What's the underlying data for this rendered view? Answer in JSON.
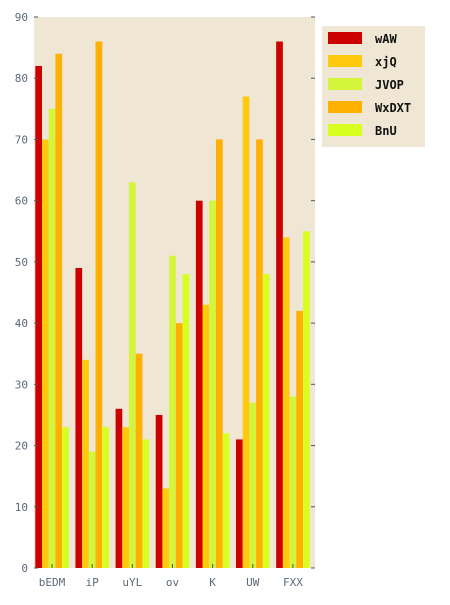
{
  "chart_data": {
    "type": "bar",
    "title": "",
    "xlabel": "",
    "ylabel": "",
    "categories": [
      "bEDM",
      "iP",
      "uYL",
      "ov",
      "K",
      "UW",
      "FXX"
    ],
    "series": [
      {
        "name": "wAW",
        "color": "#cc0000",
        "values": [
          82,
          49,
          26,
          25,
          60,
          21,
          86
        ]
      },
      {
        "name": "xjQ",
        "color": "#ffc90e",
        "values": [
          70,
          34,
          23,
          13,
          43,
          77,
          54
        ]
      },
      {
        "name": "JVOP",
        "color": "#d4f53c",
        "values": [
          75,
          19,
          63,
          51,
          60,
          27,
          28
        ]
      },
      {
        "name": "WxDXT",
        "color": "#ffb000",
        "values": [
          84,
          86,
          35,
          40,
          70,
          70,
          42
        ]
      },
      {
        "name": "BnU",
        "color": "#d8ff20",
        "values": [
          23,
          23,
          21,
          48,
          22,
          48,
          55
        ]
      }
    ],
    "ylim": [
      0,
      90
    ],
    "yticks": [
      0,
      10,
      20,
      30,
      40,
      50,
      60,
      70,
      80,
      90
    ],
    "grid": false,
    "legend_position": "top-right",
    "plot_background": "#efe6d3"
  }
}
